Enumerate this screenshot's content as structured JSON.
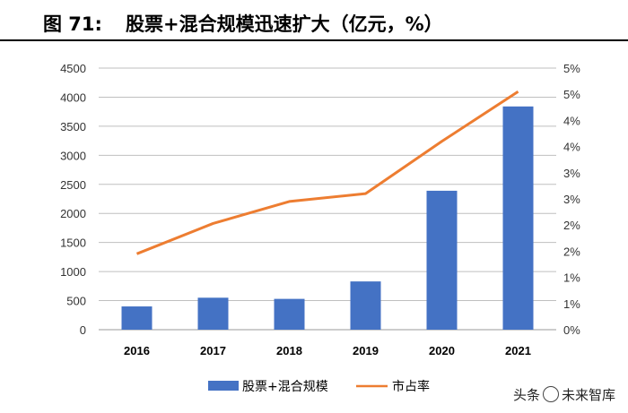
{
  "header": {
    "figure_number": "图 71:",
    "figure_title": "股票+混合规模迅速扩大（亿元，%）"
  },
  "watermark": {
    "prefix": "头条",
    "brand": "未来智库"
  },
  "chart_data": {
    "type": "bar",
    "categories": [
      "2016",
      "2017",
      "2018",
      "2019",
      "2020",
      "2021"
    ],
    "series": [
      {
        "name": "股票+混合规模",
        "type": "bar",
        "axis": "left",
        "color": "#4472C4",
        "values": [
          400,
          550,
          530,
          830,
          2390,
          3840
        ]
      },
      {
        "name": "市占率",
        "type": "line",
        "axis": "right",
        "color": "#ED7D31",
        "values": [
          1.45,
          2.03,
          2.45,
          2.6,
          3.6,
          4.55
        ]
      }
    ],
    "left_axis": {
      "min": 0,
      "max": 4500,
      "step": 500,
      "ticks": [
        "0",
        "500",
        "1000",
        "1500",
        "2000",
        "2500",
        "3000",
        "3500",
        "4000",
        "4500"
      ]
    },
    "right_axis": {
      "min": 0,
      "max": 5,
      "ticks": [
        "0%",
        "1%",
        "1%",
        "2%",
        "2%",
        "3%",
        "3%",
        "4%",
        "4%",
        "5%",
        "5%"
      ]
    },
    "grid": true,
    "legend_position": "bottom"
  }
}
